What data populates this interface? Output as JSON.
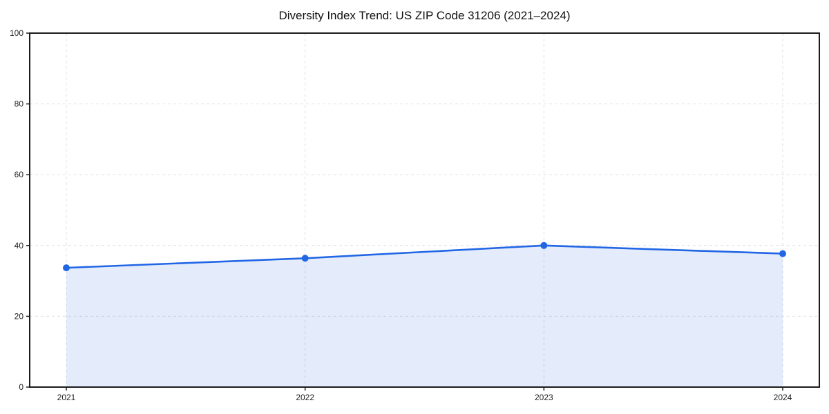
{
  "chart_data": {
    "type": "area",
    "title": "Diversity Index Trend: US ZIP Code 31206 (2021–2024)",
    "series_name": "Diversity Index",
    "categories": [
      "2021",
      "2022",
      "2023",
      "2024"
    ],
    "values": [
      33.7,
      36.4,
      40.0,
      37.7
    ],
    "xlabel": "",
    "ylabel": "",
    "ylim": [
      0,
      100
    ],
    "yticks": [
      0,
      20,
      40,
      60,
      80,
      100
    ],
    "grid": true,
    "grid_style": "dashed",
    "legend_position": "none",
    "colors": {
      "line": "#2166E5",
      "marker": "#2166E5",
      "fill": "#2166E5",
      "fill_opacity": 0.12,
      "grid": "#E0E0E0",
      "spine": "#1A1A1A",
      "tick_label": "#222222",
      "title": "#111111",
      "background": "#FFFFFF"
    }
  }
}
